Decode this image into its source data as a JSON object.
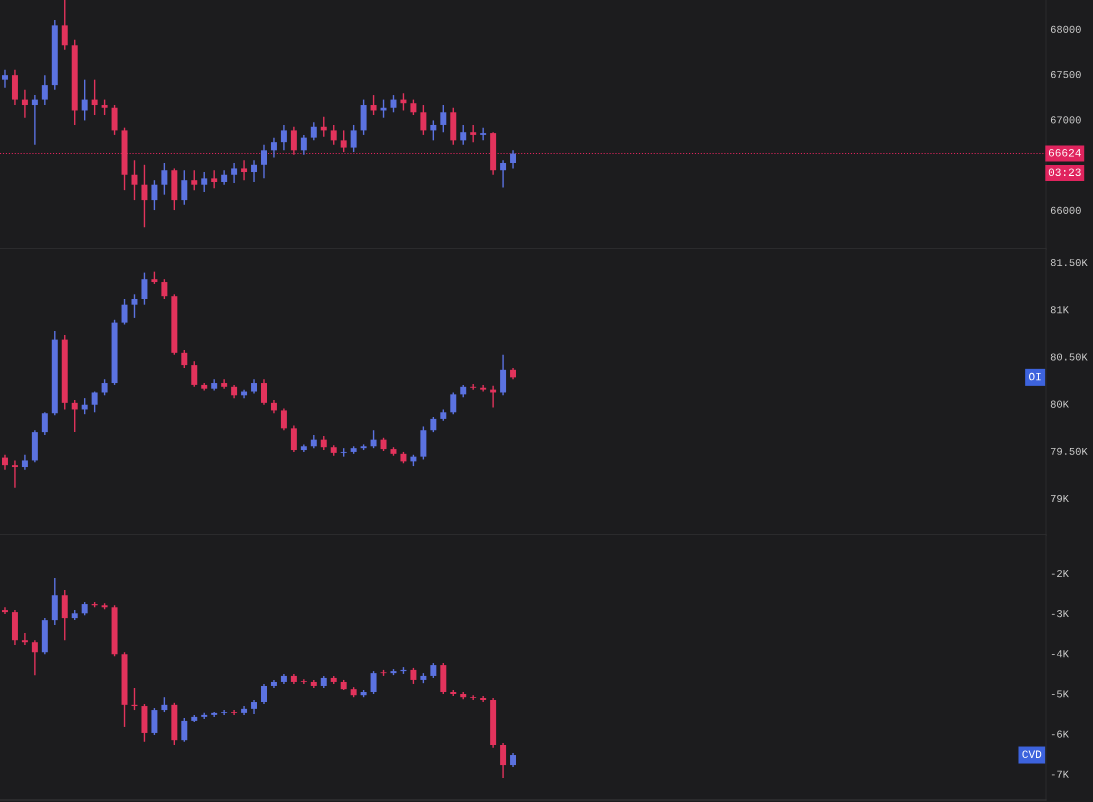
{
  "chart_data": [
    {
      "type": "candlestick",
      "tick_labels": "y",
      "grid": false,
      "colors": [
        "#5b72e0",
        "#e2335c",
        "#e2335c",
        "#5b72e0",
        "#5b72e0",
        "#5b72e0",
        "#e2335c",
        "#e2335c",
        "#5b72e0",
        "#e2335c",
        "#e2335c",
        "#e2335c",
        "#e2335c",
        "#e2335c",
        "#e2335c",
        "#5b72e0",
        "#5b72e0",
        "#e2335c",
        "#5b72e0",
        "#e2335c",
        "#5b72e0",
        "#e2335c",
        "#5b72e0",
        "#5b72e0",
        "#e2335c",
        "#5b72e0",
        "#5b72e0",
        "#5b72e0",
        "#5b72e0",
        "#e2335c",
        "#5b72e0",
        "#5b72e0",
        "#e2335c",
        "#e2335c",
        "#e2335c",
        "#5b72e0",
        "#5b72e0",
        "#e2335c",
        "#5b72e0",
        "#5b72e0",
        "#e2335c",
        "#e2335c",
        "#e2335c",
        "#5b72e0",
        "#5b72e0",
        "#e2335c",
        "#5b72e0",
        "#e2335c",
        "#5b72e0",
        "#e2335c",
        "#5b72e0",
        "#5b72e0",
        null,
        null,
        null,
        null,
        null,
        null,
        null,
        null,
        null,
        null,
        null,
        null,
        null,
        null,
        null,
        null,
        null,
        null,
        null,
        null,
        null,
        null,
        null,
        null,
        null,
        null,
        null,
        null,
        null,
        null,
        null,
        null,
        null,
        null,
        null,
        null,
        null,
        null,
        null,
        null,
        null,
        null,
        null,
        null,
        null,
        null,
        null,
        null,
        null,
        null,
        null,
        null,
        null
      ],
      "categories": [
        null,
        null,
        null,
        null,
        null,
        null,
        null,
        null,
        null,
        null,
        null,
        null,
        null,
        null,
        null,
        null,
        null,
        null,
        null,
        null,
        null,
        null,
        null,
        null,
        null,
        null,
        null,
        null,
        null,
        null,
        null,
        null,
        null,
        null,
        null,
        null,
        null,
        null,
        null,
        null,
        null,
        null,
        null,
        null,
        null,
        null,
        null,
        null,
        null,
        null,
        null,
        null,
        null,
        null,
        null,
        null,
        null,
        null,
        null,
        null,
        null,
        null,
        null,
        null,
        null,
        null,
        null,
        null,
        null,
        null,
        null,
        null,
        null,
        null,
        null,
        null,
        null,
        null,
        null,
        null,
        null,
        null,
        null,
        null,
        null,
        null,
        null,
        null,
        null,
        null,
        null,
        null,
        null,
        null,
        null,
        null,
        null,
        null,
        null,
        null,
        null,
        null,
        null,
        null,
        null
      ],
      "ohlc": [
        [
          67440,
          67550,
          67350,
          67490
        ],
        [
          67490,
          67550,
          67160,
          67220
        ],
        [
          67220,
          67330,
          67020,
          67160
        ],
        [
          67160,
          67270,
          66720,
          67220
        ],
        [
          67220,
          67490,
          67160,
          67380
        ],
        [
          67380,
          68100,
          67330,
          68040
        ],
        [
          68040,
          68320,
          67770,
          67820
        ],
        [
          67820,
          67880,
          66940,
          67100
        ],
        [
          67100,
          67440,
          66990,
          67220
        ],
        [
          67220,
          67440,
          67050,
          67160
        ],
        [
          67160,
          67220,
          67050,
          67130
        ],
        [
          67130,
          67160,
          66830,
          66880
        ],
        [
          66880,
          66910,
          66220,
          66390
        ],
        [
          66390,
          66550,
          66110,
          66280
        ],
        [
          66280,
          66500,
          65810,
          66110
        ],
        [
          66110,
          66330,
          66000,
          66280
        ],
        [
          66280,
          66520,
          66170,
          66440
        ],
        [
          66440,
          66460,
          66000,
          66110
        ],
        [
          66110,
          66440,
          66060,
          66330
        ],
        [
          66330,
          66440,
          66220,
          66280
        ],
        [
          66280,
          66420,
          66200,
          66350
        ],
        [
          66350,
          66440,
          66240,
          66310
        ],
        [
          66310,
          66440,
          66280,
          66390
        ],
        [
          66390,
          66520,
          66300,
          66460
        ],
        [
          66460,
          66550,
          66330,
          66420
        ],
        [
          66420,
          66550,
          66310,
          66500
        ],
        [
          66500,
          66720,
          66350,
          66660
        ],
        [
          66660,
          66800,
          66580,
          66750
        ],
        [
          66750,
          66940,
          66660,
          66880
        ],
        [
          66880,
          66920,
          66610,
          66660
        ],
        [
          66660,
          66830,
          66610,
          66800
        ],
        [
          66800,
          66970,
          66770,
          66920
        ],
        [
          66920,
          67030,
          66810,
          66880
        ],
        [
          66880,
          66940,
          66720,
          66770
        ],
        [
          66770,
          66880,
          66640,
          66690
        ],
        [
          66690,
          66940,
          66640,
          66880
        ],
        [
          66880,
          67220,
          66830,
          67160
        ],
        [
          67160,
          67270,
          67050,
          67100
        ],
        [
          67100,
          67220,
          67020,
          67130
        ],
        [
          67130,
          67270,
          67080,
          67220
        ],
        [
          67220,
          67290,
          67100,
          67180
        ],
        [
          67180,
          67220,
          67050,
          67080
        ],
        [
          67080,
          67160,
          66830,
          66880
        ],
        [
          66880,
          66990,
          66770,
          66940
        ],
        [
          66940,
          67160,
          66860,
          67080
        ],
        [
          67080,
          67130,
          66720,
          66770
        ],
        [
          66770,
          66940,
          66720,
          66860
        ],
        [
          66860,
          66940,
          66750,
          66830
        ],
        [
          66830,
          66910,
          66770,
          66850
        ],
        [
          66850,
          66860,
          66390,
          66440
        ],
        [
          66440,
          66550,
          66250,
          66520
        ],
        [
          66520,
          66660,
          66460,
          66624
        ],
        null,
        null,
        null,
        null,
        null,
        null,
        null,
        null,
        null,
        null,
        null,
        null,
        null,
        null,
        null,
        null,
        null,
        null,
        null,
        null,
        null,
        null,
        null,
        null,
        null,
        null,
        null,
        null,
        null,
        null,
        null,
        null,
        null,
        null,
        null,
        null,
        null,
        null,
        null,
        null,
        null,
        null,
        null,
        null,
        null,
        null,
        null,
        null,
        null,
        null,
        null,
        null,
        null
      ],
      "ylim": [
        65570,
        68320
      ],
      "yticks": [
        66000,
        67000,
        67500,
        68000
      ],
      "ref_lines": [
        {
          "axis": "y",
          "value": 66624,
          "label": "66624",
          "color": "#e0245e",
          "line_style": "dotted"
        }
      ],
      "annotations": [
        "03:23"
      ]
    },
    {
      "type": "candlestick",
      "tick_labels": "y",
      "grid": false,
      "colors": [
        "#e2335c",
        "#e2335c",
        "#5b72e0",
        "#5b72e0",
        "#5b72e0",
        "#5b72e0",
        "#e2335c",
        "#e2335c",
        "#5b72e0",
        "#5b72e0",
        "#5b72e0",
        "#5b72e0",
        "#5b72e0",
        "#5b72e0",
        "#5b72e0",
        "#e2335c",
        "#e2335c",
        "#e2335c",
        "#e2335c",
        "#e2335c",
        "#e2335c",
        "#5b72e0",
        "#e2335c",
        "#e2335c",
        "#5b72e0",
        "#5b72e0",
        "#e2335c",
        "#e2335c",
        "#e2335c",
        "#e2335c",
        "#5b72e0",
        "#5b72e0",
        "#e2335c",
        "#e2335c",
        "#5b72e0",
        "#5b72e0",
        "#5b72e0",
        "#5b72e0",
        "#e2335c",
        "#e2335c",
        "#e2335c",
        "#5b72e0",
        "#5b72e0",
        "#5b72e0",
        "#5b72e0",
        "#5b72e0",
        "#5b72e0",
        "#e2335c",
        "#e2335c",
        "#e2335c",
        "#5b72e0",
        "#e2335c",
        null,
        null,
        null,
        null,
        null,
        null,
        null,
        null,
        null,
        null,
        null,
        null,
        null,
        null,
        null,
        null,
        null,
        null,
        null,
        null,
        null,
        null,
        null,
        null,
        null,
        null,
        null,
        null,
        null,
        null,
        null,
        null,
        null,
        null,
        null,
        null,
        null,
        null,
        null,
        null,
        null,
        null,
        null,
        null,
        null,
        null,
        null,
        null,
        null,
        null,
        null,
        null,
        null
      ],
      "categories": [
        null,
        null,
        null,
        null,
        null,
        null,
        null,
        null,
        null,
        null,
        null,
        null,
        null,
        null,
        null,
        null,
        null,
        null,
        null,
        null,
        null,
        null,
        null,
        null,
        null,
        null,
        null,
        null,
        null,
        null,
        null,
        null,
        null,
        null,
        null,
        null,
        null,
        null,
        null,
        null,
        null,
        null,
        null,
        null,
        null,
        null,
        null,
        null,
        null,
        null,
        null,
        null,
        null,
        null,
        null,
        null,
        null,
        null,
        null,
        null,
        null,
        null,
        null,
        null,
        null,
        null,
        null,
        null,
        null,
        null,
        null,
        null,
        null,
        null,
        null,
        null,
        null,
        null,
        null,
        null,
        null,
        null,
        null,
        null,
        null,
        null,
        null,
        null,
        null,
        null,
        null,
        null,
        null,
        null,
        null,
        null,
        null,
        null,
        null,
        null,
        null,
        null,
        null,
        null,
        null
      ],
      "ohlc": [
        [
          79430,
          79460,
          79300,
          79350
        ],
        [
          79350,
          79400,
          79110,
          79330
        ],
        [
          79330,
          79460,
          79300,
          79400
        ],
        [
          79400,
          79720,
          79380,
          79700
        ],
        [
          79700,
          79910,
          79670,
          79900
        ],
        [
          79900,
          80770,
          79880,
          80680
        ],
        [
          80680,
          80730,
          79940,
          80010
        ],
        [
          80010,
          80040,
          79700,
          79940
        ],
        [
          79940,
          80060,
          79890,
          79990
        ],
        [
          79990,
          80130,
          79910,
          80120
        ],
        [
          80120,
          80260,
          80090,
          80220
        ],
        [
          80220,
          80890,
          80200,
          80860
        ],
        [
          80860,
          81110,
          80840,
          81050
        ],
        [
          81050,
          81160,
          80910,
          81110
        ],
        [
          81110,
          81390,
          81050,
          81320
        ],
        [
          81320,
          81400,
          81270,
          81290
        ],
        [
          81290,
          81320,
          81110,
          81140
        ],
        [
          81140,
          81160,
          80520,
          80540
        ],
        [
          80540,
          80570,
          80380,
          80410
        ],
        [
          80410,
          80450,
          80180,
          80200
        ],
        [
          80200,
          80220,
          80140,
          80160
        ],
        [
          80160,
          80260,
          80140,
          80220
        ],
        [
          80220,
          80260,
          80160,
          80180
        ],
        [
          80180,
          80200,
          80060,
          80090
        ],
        [
          80090,
          80150,
          80060,
          80130
        ],
        [
          80130,
          80260,
          80110,
          80220
        ],
        [
          80220,
          80260,
          79990,
          80010
        ],
        [
          80010,
          80040,
          79900,
          79930
        ],
        [
          79930,
          79950,
          79720,
          79740
        ],
        [
          79740,
          79770,
          79490,
          79510
        ],
        [
          79510,
          79570,
          79490,
          79550
        ],
        [
          79550,
          79670,
          79530,
          79620
        ],
        [
          79620,
          79660,
          79510,
          79540
        ],
        [
          79540,
          79560,
          79450,
          79480
        ],
        [
          79480,
          79530,
          79440,
          79490
        ],
        [
          79490,
          79550,
          79470,
          79530
        ],
        [
          79530,
          79570,
          79510,
          79550
        ],
        [
          79550,
          79720,
          79530,
          79620
        ],
        [
          79620,
          79640,
          79500,
          79520
        ],
        [
          79520,
          79540,
          79450,
          79470
        ],
        [
          79470,
          79490,
          79370,
          79390
        ],
        [
          79390,
          79460,
          79340,
          79440
        ],
        [
          79440,
          79760,
          79410,
          79720
        ],
        [
          79720,
          79860,
          79700,
          79840
        ],
        [
          79840,
          79940,
          79820,
          79910
        ],
        [
          79910,
          80120,
          79890,
          80100
        ],
        [
          80100,
          80200,
          80070,
          80180
        ],
        [
          80180,
          80210,
          80150,
          80170
        ],
        [
          80170,
          80200,
          80130,
          80150
        ],
        [
          80150,
          80190,
          79960,
          80120
        ],
        [
          80120,
          80520,
          80090,
          80360
        ],
        [
          80360,
          80380,
          80260,
          80280
        ],
        null,
        null,
        null,
        null,
        null,
        null,
        null,
        null,
        null,
        null,
        null,
        null,
        null,
        null,
        null,
        null,
        null,
        null,
        null,
        null,
        null,
        null,
        null,
        null,
        null,
        null,
        null,
        null,
        null,
        null,
        null,
        null,
        null,
        null,
        null,
        null,
        null,
        null,
        null,
        null,
        null,
        null,
        null,
        null,
        null,
        null,
        null,
        null,
        null,
        null,
        null,
        null,
        null
      ],
      "ylim": [
        78610,
        81640
      ],
      "yticks": [
        {
          "value": 79000,
          "label": "79K"
        },
        {
          "value": 79500,
          "label": "79.50K"
        },
        {
          "value": 80000,
          "label": "80K"
        },
        {
          "value": 80500,
          "label": "80.50K"
        },
        {
          "value": 81000,
          "label": "81K"
        },
        {
          "value": 81500,
          "label": "81.50K"
        }
      ],
      "annotations": [
        "OI"
      ]
    },
    {
      "type": "candlestick",
      "tick_labels": "y",
      "grid": false,
      "colors": [
        "#e2335c",
        "#e2335c",
        "#e2335c",
        "#e2335c",
        "#5b72e0",
        "#5b72e0",
        "#e2335c",
        "#5b72e0",
        "#5b72e0",
        "#e2335c",
        "#e2335c",
        "#e2335c",
        "#e2335c",
        "#e2335c",
        "#e2335c",
        "#5b72e0",
        "#5b72e0",
        "#e2335c",
        "#5b72e0",
        "#5b72e0",
        "#5b72e0",
        "#5b72e0",
        "#5b72e0",
        "#e2335c",
        "#5b72e0",
        "#5b72e0",
        "#5b72e0",
        "#5b72e0",
        "#5b72e0",
        "#e2335c",
        "#e2335c",
        "#e2335c",
        "#5b72e0",
        "#e2335c",
        "#e2335c",
        "#e2335c",
        "#5b72e0",
        "#5b72e0",
        "#e2335c",
        "#5b72e0",
        "#5b72e0",
        "#e2335c",
        "#5b72e0",
        "#5b72e0",
        "#e2335c",
        "#e2335c",
        "#e2335c",
        "#e2335c",
        "#e2335c",
        "#e2335c",
        "#e2335c",
        "#5b72e0",
        null,
        null,
        null,
        null,
        null,
        null,
        null,
        null,
        null,
        null,
        null,
        null,
        null,
        null,
        null,
        null,
        null,
        null,
        null,
        null,
        null,
        null,
        null,
        null,
        null,
        null,
        null,
        null,
        null,
        null,
        null,
        null,
        null,
        null,
        null,
        null,
        null,
        null,
        null,
        null,
        null,
        null,
        null,
        null,
        null,
        null,
        null,
        null,
        null,
        null,
        null,
        null,
        null
      ],
      "categories": [
        null,
        null,
        null,
        null,
        null,
        null,
        null,
        null,
        null,
        null,
        null,
        null,
        null,
        null,
        null,
        null,
        null,
        null,
        null,
        null,
        null,
        null,
        null,
        null,
        null,
        null,
        null,
        null,
        null,
        null,
        null,
        null,
        null,
        null,
        null,
        null,
        null,
        null,
        null,
        null,
        null,
        null,
        null,
        null,
        null,
        null,
        null,
        null,
        null,
        null,
        null,
        null,
        null,
        null,
        null,
        null,
        null,
        null,
        null,
        null,
        null,
        null,
        null,
        null,
        null,
        null,
        null,
        null,
        null,
        null,
        null,
        null,
        null,
        null,
        null,
        null,
        null,
        null,
        null,
        null,
        null,
        null,
        null,
        null,
        null,
        null,
        null,
        null,
        null,
        null,
        null,
        null,
        null,
        null,
        null,
        null,
        null,
        null,
        null,
        null,
        null,
        null,
        null,
        null,
        null
      ],
      "ohlc": [
        [
          -2920,
          -2850,
          -3020,
          -2970
        ],
        [
          -2970,
          -2920,
          -3790,
          -3670
        ],
        [
          -3670,
          -3490,
          -3790,
          -3720
        ],
        [
          -3720,
          -3670,
          -4540,
          -3970
        ],
        [
          -3970,
          -3120,
          -4020,
          -3170
        ],
        [
          -3170,
          -2120,
          -3290,
          -2550
        ],
        [
          -2550,
          -2420,
          -3670,
          -3120
        ],
        [
          -3120,
          -2920,
          -3170,
          -3000
        ],
        [
          -3000,
          -2720,
          -3050,
          -2770
        ],
        [
          -2770,
          -2720,
          -2850,
          -2800
        ],
        [
          -2800,
          -2750,
          -2900,
          -2850
        ],
        [
          -2850,
          -2800,
          -4070,
          -4020
        ],
        [
          -4020,
          -3970,
          -5830,
          -5280
        ],
        [
          -5280,
          -4860,
          -5410,
          -5310
        ],
        [
          -5310,
          -5260,
          -6200,
          -5980
        ],
        [
          -5980,
          -5360,
          -6030,
          -5410
        ],
        [
          -5410,
          -5090,
          -5460,
          -5280
        ],
        [
          -5280,
          -5230,
          -6280,
          -6160
        ],
        [
          -6160,
          -5610,
          -6200,
          -5680
        ],
        [
          -5680,
          -5530,
          -5710,
          -5580
        ],
        [
          -5580,
          -5480,
          -5630,
          -5530
        ],
        [
          -5530,
          -5460,
          -5580,
          -5480
        ],
        [
          -5480,
          -5410,
          -5530,
          -5460
        ],
        [
          -5460,
          -5410,
          -5530,
          -5480
        ],
        [
          -5480,
          -5310,
          -5530,
          -5380
        ],
        [
          -5380,
          -5160,
          -5510,
          -5210
        ],
        [
          -5210,
          -4760,
          -5260,
          -4810
        ],
        [
          -4810,
          -4660,
          -4860,
          -4710
        ],
        [
          -4710,
          -4510,
          -4760,
          -4560
        ],
        [
          -4560,
          -4510,
          -4760,
          -4710
        ],
        [
          -4690,
          -4640,
          -4760,
          -4710
        ],
        [
          -4710,
          -4660,
          -4860,
          -4810
        ],
        [
          -4810,
          -4560,
          -4860,
          -4610
        ],
        [
          -4610,
          -4560,
          -4760,
          -4710
        ],
        [
          -4710,
          -4660,
          -4910,
          -4890
        ],
        [
          -4890,
          -4840,
          -5090,
          -5040
        ],
        [
          -5040,
          -4910,
          -5090,
          -4960
        ],
        [
          -4960,
          -4440,
          -5010,
          -4490
        ],
        [
          -4470,
          -4410,
          -4560,
          -4490
        ],
        [
          -4490,
          -4390,
          -4540,
          -4440
        ],
        [
          -4440,
          -4340,
          -4510,
          -4410
        ],
        [
          -4410,
          -4360,
          -4760,
          -4660
        ],
        [
          -4660,
          -4490,
          -4740,
          -4560
        ],
        [
          -4560,
          -4240,
          -4610,
          -4290
        ],
        [
          -4290,
          -4240,
          -5010,
          -4960
        ],
        [
          -4960,
          -4910,
          -5060,
          -5010
        ],
        [
          -5010,
          -4960,
          -5140,
          -5090
        ],
        [
          -5090,
          -5040,
          -5160,
          -5110
        ],
        [
          -5110,
          -5060,
          -5210,
          -5160
        ],
        [
          -5160,
          -5110,
          -6350,
          -6280
        ],
        [
          -6280,
          -6230,
          -7100,
          -6780
        ],
        [
          -6780,
          -6480,
          -6830,
          -6530
        ],
        null,
        null,
        null,
        null,
        null,
        null,
        null,
        null,
        null,
        null,
        null,
        null,
        null,
        null,
        null,
        null,
        null,
        null,
        null,
        null,
        null,
        null,
        null,
        null,
        null,
        null,
        null,
        null,
        null,
        null,
        null,
        null,
        null,
        null,
        null,
        null,
        null,
        null,
        null,
        null,
        null,
        null,
        null,
        null,
        null,
        null,
        null,
        null,
        null,
        null,
        null,
        null,
        null
      ],
      "ylim": [
        -7650,
        -1050
      ],
      "yticks": [
        {
          "value": -7000,
          "label": "-7K"
        },
        {
          "value": -6000,
          "label": "-6K"
        },
        {
          "value": -5000,
          "label": "-5K"
        },
        {
          "value": -4000,
          "label": "-4K"
        },
        {
          "value": -3000,
          "label": "-3K"
        },
        {
          "value": -2000,
          "label": "-2K"
        }
      ],
      "annotations": [
        "CVD"
      ]
    }
  ]
}
